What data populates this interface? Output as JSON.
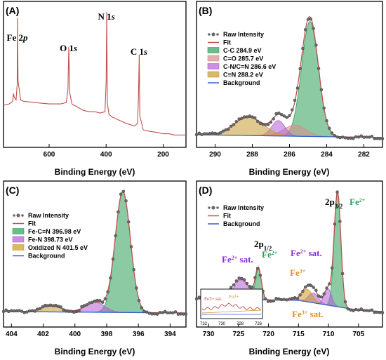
{
  "chart_data": [
    {
      "panel": "(A)",
      "type": "line",
      "xlabel": "Binding Energy (eV)",
      "xlim": [
        760,
        120
      ],
      "xticks": [
        600,
        400,
        200
      ],
      "annotations": [
        {
          "text": "Fe 2",
          "sub": "p",
          "x": 712
        },
        {
          "text": "O 1",
          "sub": "s",
          "x": 532
        },
        {
          "text": "N 1",
          "sub": "s",
          "x": 399
        },
        {
          "text": "C 1",
          "sub": "s",
          "x": 285
        }
      ],
      "series": [
        {
          "points": [
            [
              760,
              0.26
            ],
            [
              740,
              0.27
            ],
            [
              728,
              0.29
            ],
            [
              725,
              0.35
            ],
            [
              722,
              0.32
            ],
            [
              716,
              0.3
            ],
            [
              712,
              0.42
            ],
            [
              711,
              0.93
            ],
            [
              709,
              0.45
            ],
            [
              700,
              0.3
            ],
            [
              690,
              0.29
            ],
            [
              650,
              0.28
            ],
            [
              600,
              0.27
            ],
            [
              560,
              0.27
            ],
            [
              540,
              0.28
            ],
            [
              534,
              0.38
            ],
            [
              531,
              0.71
            ],
            [
              528,
              0.36
            ],
            [
              520,
              0.27
            ],
            [
              480,
              0.22
            ],
            [
              460,
              0.21
            ],
            [
              440,
              0.21
            ],
            [
              420,
              0.2
            ],
            [
              404,
              0.21
            ],
            [
              400,
              0.45
            ],
            [
              398,
              0.98
            ],
            [
              396,
              0.28
            ],
            [
              390,
              0.19
            ],
            [
              380,
              0.17
            ],
            [
              370,
              0.16
            ],
            [
              360,
              0.15
            ],
            [
              350,
              0.14
            ],
            [
              340,
              0.13
            ],
            [
              330,
              0.12
            ],
            [
              300,
              0.1
            ],
            [
              290,
              0.12
            ],
            [
              287,
              0.3
            ],
            [
              284,
              0.65
            ],
            [
              282,
              0.18
            ],
            [
              270,
              0.07
            ],
            [
              250,
              0.06
            ],
            [
              220,
              0.05
            ],
            [
              200,
              0.04
            ],
            [
              180,
              0.04
            ],
            [
              160,
              0.03
            ],
            [
              140,
              0.03
            ],
            [
              120,
              0.03
            ]
          ]
        }
      ]
    },
    {
      "panel": "(B)",
      "type": "line",
      "xlabel": "Binding Energy (eV)",
      "xlim": [
        291,
        281
      ],
      "xticks": [
        290,
        288,
        286,
        284,
        282
      ],
      "legend": [
        "Raw Intensity",
        "Fit",
        "C-C 284.9 eV",
        "C=O 285.7 eV",
        "C-N/C=N 286.6 eV",
        "C≡N 288.2 eV",
        "Background"
      ],
      "components": [
        {
          "name": "C-C 284.9 eV",
          "center": 284.9,
          "height": 0.82,
          "width": 0.45,
          "color": "#2e9e58"
        },
        {
          "name": "C=O 285.7 eV",
          "center": 285.7,
          "height": 0.08,
          "width": 0.6,
          "color": "#d98c8c"
        },
        {
          "name": "C-N/C=N 286.6 eV",
          "center": 286.6,
          "height": 0.11,
          "width": 0.35,
          "color": "#b15fd6"
        },
        {
          "name": "C≡N 288.2 eV",
          "center": 288.2,
          "height": 0.13,
          "width": 0.8,
          "color": "#c99a2e"
        }
      ],
      "background": [
        [
          291,
          0.02
        ],
        [
          281,
          0.0
        ]
      ]
    },
    {
      "panel": "(C)",
      "type": "line",
      "xlabel": "Binding Energy (eV)",
      "xlim": [
        404.5,
        393
      ],
      "xticks": [
        404,
        402,
        400,
        398,
        396,
        394
      ],
      "legend": [
        "Raw Intensity",
        "Fit",
        "Fe-C≡N 396.98 eV",
        "Fe-N  398.73 eV",
        "Oxidized N  401.5 eV",
        "Background"
      ],
      "components": [
        {
          "name": "Fe-C≡N 396.98 eV",
          "center": 396.98,
          "height": 0.84,
          "width": 0.48,
          "color": "#2e9e58"
        },
        {
          "name": "Fe-N  398.73 eV",
          "center": 398.73,
          "height": 0.07,
          "width": 0.6,
          "color": "#b15fd6"
        },
        {
          "name": "Oxidized N  401.5 eV",
          "center": 401.5,
          "height": 0.04,
          "width": 0.7,
          "color": "#c99a2e"
        }
      ],
      "background": [
        [
          404.5,
          0.01
        ],
        [
          393,
          0.0
        ]
      ]
    },
    {
      "panel": "(D)",
      "type": "line",
      "xlabel": "Binding Energy (eV)",
      "xlim": [
        732,
        701
      ],
      "xticks": [
        730,
        725,
        720,
        715,
        710,
        705
      ],
      "legend": [
        "Raw Intensity",
        "Fit",
        "Background"
      ],
      "annotations": [
        {
          "text": "2p",
          "sub": "3/2",
          "x": 709
        },
        {
          "text": "Fe",
          "sup": "2+",
          "x": 706
        },
        {
          "text": "2p",
          "sub": "1/2",
          "x": 722
        },
        {
          "text": "Fe",
          "sup": "2+",
          "x": 721
        },
        {
          "text": "Fe",
          "sup": "2+",
          "suffix": " sat.",
          "x": 725
        },
        {
          "text": "Fe",
          "sup": "2+",
          "suffix": " sat.",
          "x": 712
        },
        {
          "text": "Fe",
          "sup": "3+",
          "x": 714
        },
        {
          "text": "Fe",
          "sup": "3+",
          "suffix": " sat.",
          "x": 716
        }
      ],
      "inset": {
        "xticks": [
          732,
          730,
          728,
          726
        ],
        "labels": [
          "Fe3+ sat.",
          "Fe2+"
        ]
      },
      "components": [
        {
          "name": "Fe2+ 2p3/2",
          "center": 708.5,
          "height": 0.82,
          "width": 0.55,
          "color": "#2e9e58"
        },
        {
          "name": "Fe2+ 2p1/2",
          "center": 721.7,
          "height": 0.22,
          "width": 0.5,
          "color": "#2e9e58"
        },
        {
          "name": "Fe3+ 2p3/2",
          "center": 710.1,
          "height": 0.12,
          "width": 0.6,
          "color": "#b15fd6"
        },
        {
          "name": "Fe2+ sat.",
          "center": 712.5,
          "height": 0.07,
          "width": 0.8,
          "color": "#b15fd6"
        },
        {
          "name": "Fe3+",
          "center": 713.6,
          "height": 0.09,
          "width": 0.9,
          "color": "#c99a2e"
        },
        {
          "name": "Fe2+ sat. 2p1/2",
          "center": 724.5,
          "height": 0.14,
          "width": 1.3,
          "color": "#b15fd6"
        },
        {
          "name": "Fe3+ sat. 2p1/2",
          "center": 727.5,
          "height": 0.04,
          "width": 1.5,
          "color": "#c99a2e"
        }
      ],
      "background": [
        [
          732,
          0.1
        ],
        [
          715,
          0.09
        ],
        [
          705,
          0.02
        ],
        [
          701,
          0.01
        ]
      ]
    }
  ],
  "colors": {
    "survey": "#c0504d",
    "fit": "#c0504d",
    "background": "#3060d0",
    "raw": "#555555"
  }
}
